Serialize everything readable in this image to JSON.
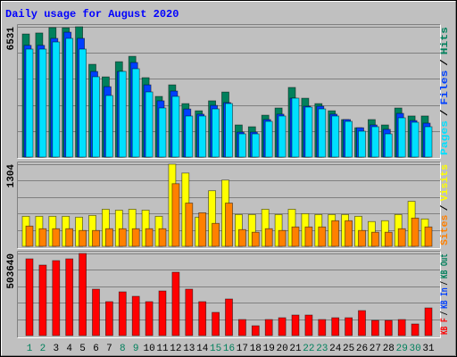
{
  "chart_data": [
    {
      "type": "bar",
      "title": "Daily usage for August 2020",
      "title_color": "#0000ff",
      "separator": "/",
      "ylim": [
        0,
        6531
      ],
      "yticks": [
        6531
      ],
      "grid": true,
      "series": [
        {
          "name": "Pages",
          "color": "#00e0ff",
          "values": [
            5412,
            5412,
            5770,
            5949,
            5412,
            4026,
            3086,
            4294,
            4428,
            3265,
            2460,
            3042,
            2058,
            2058,
            2415,
            2684,
            1163,
            1163,
            1789,
            2058,
            2952,
            2505,
            2415,
            2058,
            1789,
            1297,
            1521,
            1163,
            1968,
            1744,
            1521
          ]
        },
        {
          "name": "Files",
          "color": "#0040ff",
          "values": [
            5600,
            5600,
            5950,
            6260,
            5950,
            4290,
            3530,
            4290,
            4740,
            3620,
            2820,
            3310,
            2410,
            2150,
            2590,
            2730,
            1250,
            1250,
            1880,
            2150,
            2950,
            2550,
            2550,
            2150,
            1880,
            1470,
            1610,
            1390,
            2190,
            1830,
            1700
          ]
        },
        {
          "name": "Hits",
          "color": "#00805c",
          "values": [
            6170,
            6220,
            6490,
            6480,
            6531,
            4650,
            4020,
            4780,
            5050,
            3980,
            3040,
            3620,
            2680,
            2320,
            2820,
            3260,
            1610,
            1520,
            2100,
            2460,
            3490,
            2950,
            2680,
            2320,
            1880,
            1470,
            1880,
            1610,
            2460,
            2060,
            2060
          ]
        }
      ]
    },
    {
      "type": "bar",
      "ylim": [
        0,
        1304
      ],
      "yticks": [
        1304
      ],
      "grid": true,
      "series": [
        {
          "name": "Sites",
          "color": "#ff8000",
          "values": [
            322,
            280,
            280,
            280,
            252,
            252,
            280,
            280,
            280,
            280,
            280,
            995,
            687,
            533,
            365,
            687,
            266,
            224,
            280,
            252,
            308,
            308,
            308,
            407,
            407,
            252,
            224,
            224,
            280,
            449,
            308
          ]
        },
        {
          "name": "Visits",
          "color": "#ffff00",
          "values": [
            477,
            477,
            477,
            477,
            463,
            491,
            589,
            575,
            589,
            575,
            477,
            1304,
            1164,
            463,
            883,
            1052,
            505,
            505,
            589,
            505,
            589,
            519,
            505,
            505,
            505,
            477,
            393,
            407,
            505,
            715,
            435
          ]
        }
      ]
    },
    {
      "type": "bar",
      "ylim": [
        0,
        503640
      ],
      "yticks": [
        503640
      ],
      "grid": true,
      "categories": [
        "1",
        "2",
        "3",
        "4",
        "5",
        "6",
        "7",
        "8",
        "9",
        "10",
        "11",
        "12",
        "13",
        "14",
        "15",
        "16",
        "17",
        "18",
        "19",
        "20",
        "21",
        "22",
        "23",
        "24",
        "25",
        "26",
        "27",
        "28",
        "29",
        "30",
        "31"
      ],
      "category_colors": [
        "#00805c",
        "#00805c",
        "#000000",
        "#000000",
        "#000000",
        "#000000",
        "#000000",
        "#00805c",
        "#00805c",
        "#000000",
        "#000000",
        "#000000",
        "#000000",
        "#000000",
        "#00805c",
        "#00805c",
        "#000000",
        "#000000",
        "#000000",
        "#000000",
        "#000000",
        "#00805c",
        "#00805c",
        "#000000",
        "#000000",
        "#000000",
        "#000000",
        "#000000",
        "#00805c",
        "#00805c",
        "#000000"
      ],
      "series": [
        {
          "name": "KB F",
          "color": "#ff0000",
          "values": [
            470764,
            432446,
            459816,
            470764,
            503640,
            284648,
            208012,
            268226,
            240856,
            208012,
            273700,
            388654,
            284648,
            208012,
            142324,
            224434,
            98532,
            60214,
            98532,
            109480,
            125902,
            125902,
            98532,
            109480,
            109480,
            153272,
            93058,
            93058,
            98532,
            71162,
            169694
          ]
        },
        {
          "name": "KB In",
          "color": "#0040ff",
          "values": [
            0,
            0,
            0,
            0,
            0,
            0,
            0,
            0,
            0,
            0,
            0,
            0,
            0,
            0,
            0,
            0,
            0,
            0,
            0,
            0,
            0,
            0,
            0,
            0,
            0,
            0,
            0,
            0,
            0,
            0,
            0
          ]
        },
        {
          "name": "KB Out",
          "color": "#00805c",
          "values": [
            0,
            0,
            0,
            0,
            0,
            0,
            0,
            0,
            0,
            0,
            0,
            0,
            0,
            0,
            0,
            0,
            0,
            0,
            0,
            0,
            0,
            0,
            0,
            0,
            0,
            0,
            0,
            0,
            0,
            0,
            0
          ]
        }
      ]
    }
  ]
}
